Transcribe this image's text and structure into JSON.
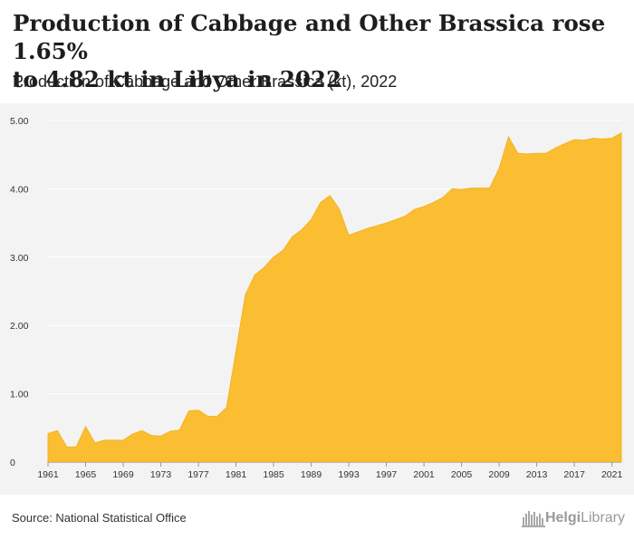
{
  "header": {
    "title_line1": "Production of Cabbage and Other Brassica rose 1.65%",
    "title_line2": "to 4.82 kt in Libya in 2022",
    "subtitle": "Production of Cabbage and Other Brassica (kt), 2022"
  },
  "footer": {
    "source": "Source: National Statistical Office",
    "logo_name": "HelgiLibrary",
    "logo_part1": "Helgi",
    "logo_part2": "Library",
    "logo_icon": "city-skyline-icon"
  },
  "colors": {
    "area_fill": "#fbbd32",
    "area_stroke": "#f3b51f",
    "plot_background": "#f3f3f3",
    "gridline": "#ffffff"
  },
  "chart_data": {
    "type": "area",
    "title": "Production of Cabbage and Other Brassica rose 1.65% to 4.82 kt in Libya in 2022",
    "subtitle": "Production of Cabbage and Other Brassica (kt), 2022",
    "xlabel": "",
    "ylabel": "",
    "ylim": [
      0,
      5
    ],
    "xlim": [
      1961,
      2022
    ],
    "grid": true,
    "legend": "none",
    "x": [
      1961,
      1962,
      1963,
      1964,
      1965,
      1966,
      1967,
      1968,
      1969,
      1970,
      1971,
      1972,
      1973,
      1974,
      1975,
      1976,
      1977,
      1978,
      1979,
      1980,
      1981,
      1982,
      1983,
      1984,
      1985,
      1986,
      1987,
      1988,
      1989,
      1990,
      1991,
      1992,
      1993,
      1994,
      1995,
      1996,
      1997,
      1998,
      1999,
      2000,
      2001,
      2002,
      2003,
      2004,
      2005,
      2006,
      2007,
      2008,
      2009,
      2010,
      2011,
      2012,
      2013,
      2014,
      2015,
      2016,
      2017,
      2018,
      2019,
      2020,
      2021,
      2022
    ],
    "values": [
      0.42,
      0.46,
      0.22,
      0.22,
      0.52,
      0.28,
      0.32,
      0.32,
      0.32,
      0.41,
      0.46,
      0.39,
      0.38,
      0.45,
      0.47,
      0.75,
      0.76,
      0.67,
      0.67,
      0.8,
      1.62,
      2.45,
      2.74,
      2.85,
      3.0,
      3.1,
      3.3,
      3.4,
      3.55,
      3.8,
      3.9,
      3.7,
      3.32,
      3.37,
      3.42,
      3.46,
      3.5,
      3.55,
      3.6,
      3.7,
      3.74,
      3.8,
      3.87,
      4.0,
      3.99,
      4.01,
      4.01,
      4.01,
      4.3,
      4.76,
      4.52,
      4.51,
      4.52,
      4.52,
      4.6,
      4.66,
      4.72,
      4.71,
      4.74,
      4.73,
      4.74,
      4.82
    ],
    "y_ticks": [
      0,
      1,
      2,
      3,
      4,
      5
    ],
    "y_tick_labels": [
      "0",
      "1.00",
      "2.00",
      "3.00",
      "4.00",
      "5.00"
    ],
    "x_ticks": [
      1961,
      1965,
      1969,
      1973,
      1977,
      1981,
      1985,
      1989,
      1993,
      1997,
      2001,
      2005,
      2009,
      2013,
      2017,
      2021
    ],
    "x_tick_labels": [
      "1961",
      "1965",
      "1969",
      "1973",
      "1977",
      "1981",
      "1985",
      "1989",
      "1993",
      "1997",
      "2001",
      "2005",
      "2009",
      "2013",
      "2017",
      "2021"
    ]
  }
}
